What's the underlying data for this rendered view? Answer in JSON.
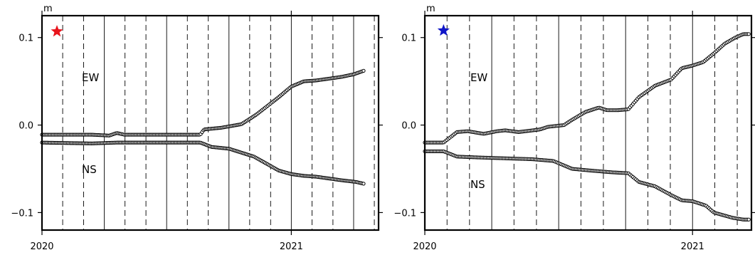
{
  "chart_data": [
    {
      "type": "scatter",
      "panel": "left",
      "unit": "m",
      "xlim": [
        2020.0,
        2021.35
      ],
      "ylim": [
        -0.12,
        0.125
      ],
      "x_ticks": [
        {
          "value": 2020.0,
          "label": "2020"
        },
        {
          "value": 2021.0,
          "label": "2021"
        }
      ],
      "y_ticks": [
        {
          "value": 0.1,
          "label": "0.1"
        },
        {
          "value": 0.0,
          "label": "0.0"
        },
        {
          "value": -0.1,
          "label": "−0.1"
        }
      ],
      "marker": {
        "symbol": "star",
        "color": "#e8141c",
        "x": 2020.06,
        "y": 0.107
      },
      "solid_lines": [
        2020.25,
        2020.5,
        2020.75,
        2021.0,
        2021.25
      ],
      "dashed_lines": [
        2020.083,
        2020.167,
        2020.333,
        2020.417,
        2020.583,
        2020.667,
        2020.833,
        2020.917,
        2021.083,
        2021.167,
        2021.333
      ],
      "series": [
        {
          "name": "EW",
          "label_at": {
            "x": 2020.16,
            "y": 0.05
          },
          "knots": [
            [
              2020.0,
              -0.011
            ],
            [
              2020.2,
              -0.011
            ],
            [
              2020.27,
              -0.012
            ],
            [
              2020.3,
              -0.009
            ],
            [
              2020.33,
              -0.011
            ],
            [
              2020.6,
              -0.011
            ],
            [
              2020.635,
              -0.011
            ],
            [
              2020.65,
              -0.005
            ],
            [
              2020.72,
              -0.003
            ],
            [
              2020.8,
              0.001
            ],
            [
              2020.86,
              0.012
            ],
            [
              2020.95,
              0.032
            ],
            [
              2021.0,
              0.044
            ],
            [
              2021.05,
              0.05
            ],
            [
              2021.1,
              0.051
            ],
            [
              2021.2,
              0.055
            ],
            [
              2021.25,
              0.058
            ],
            [
              2021.27,
              0.06
            ],
            [
              2021.29,
              0.062
            ]
          ],
          "values_note": "y values in m"
        },
        {
          "name": "NS",
          "label_at": {
            "x": 2020.16,
            "y": -0.055
          },
          "knots": [
            [
              2020.0,
              -0.02
            ],
            [
              2020.2,
              -0.021
            ],
            [
              2020.3,
              -0.02
            ],
            [
              2020.6,
              -0.02
            ],
            [
              2020.635,
              -0.02
            ],
            [
              2020.68,
              -0.025
            ],
            [
              2020.75,
              -0.027
            ],
            [
              2020.85,
              -0.036
            ],
            [
              2020.95,
              -0.052
            ],
            [
              2021.0,
              -0.056
            ],
            [
              2021.05,
              -0.058
            ],
            [
              2021.1,
              -0.059
            ],
            [
              2021.2,
              -0.063
            ],
            [
              2021.26,
              -0.065
            ],
            [
              2021.29,
              -0.067
            ]
          ]
        }
      ]
    },
    {
      "type": "scatter",
      "panel": "right",
      "unit": "m",
      "xlim": [
        2020.0,
        2021.22
      ],
      "ylim": [
        -0.12,
        0.125
      ],
      "x_ticks": [
        {
          "value": 2020.0,
          "label": "2020"
        },
        {
          "value": 2021.0,
          "label": "2021"
        }
      ],
      "y_ticks": [
        {
          "value": 0.1,
          "label": "0.1"
        },
        {
          "value": 0.0,
          "label": "0.0"
        },
        {
          "value": -0.1,
          "label": "−0.1"
        }
      ],
      "marker": {
        "symbol": "star",
        "color": "#1016c8",
        "x": 2020.07,
        "y": 0.108
      },
      "solid_lines": [
        2020.25,
        2020.5,
        2020.75,
        2021.0
      ],
      "dashed_lines": [
        2020.083,
        2020.167,
        2020.333,
        2020.417,
        2020.583,
        2020.667,
        2020.833,
        2020.917,
        2021.083,
        2021.167
      ],
      "series": [
        {
          "name": "EW",
          "label_at": {
            "x": 2020.17,
            "y": 0.05
          },
          "knots": [
            [
              2020.0,
              -0.02
            ],
            [
              2020.07,
              -0.02
            ],
            [
              2020.12,
              -0.008
            ],
            [
              2020.16,
              -0.007
            ],
            [
              2020.22,
              -0.01
            ],
            [
              2020.27,
              -0.007
            ],
            [
              2020.3,
              -0.006
            ],
            [
              2020.35,
              -0.008
            ],
            [
              2020.43,
              -0.005
            ],
            [
              2020.46,
              -0.002
            ],
            [
              2020.52,
              0.0
            ],
            [
              2020.55,
              0.006
            ],
            [
              2020.6,
              0.015
            ],
            [
              2020.65,
              0.02
            ],
            [
              2020.68,
              0.017
            ],
            [
              2020.72,
              0.017
            ],
            [
              2020.76,
              0.018
            ],
            [
              2020.8,
              0.032
            ],
            [
              2020.86,
              0.045
            ],
            [
              2020.92,
              0.052
            ],
            [
              2020.96,
              0.065
            ],
            [
              2021.0,
              0.068
            ],
            [
              2021.04,
              0.072
            ],
            [
              2021.08,
              0.082
            ],
            [
              2021.12,
              0.093
            ],
            [
              2021.16,
              0.1
            ],
            [
              2021.19,
              0.104
            ],
            [
              2021.21,
              0.104
            ]
          ]
        },
        {
          "name": "NS",
          "label_at": {
            "x": 2020.17,
            "y": -0.072
          },
          "knots": [
            [
              2020.0,
              -0.03
            ],
            [
              2020.07,
              -0.03
            ],
            [
              2020.12,
              -0.036
            ],
            [
              2020.2,
              -0.037
            ],
            [
              2020.3,
              -0.038
            ],
            [
              2020.4,
              -0.039
            ],
            [
              2020.48,
              -0.041
            ],
            [
              2020.55,
              -0.05
            ],
            [
              2020.62,
              -0.052
            ],
            [
              2020.7,
              -0.054
            ],
            [
              2020.76,
              -0.055
            ],
            [
              2020.8,
              -0.065
            ],
            [
              2020.86,
              -0.07
            ],
            [
              2020.92,
              -0.08
            ],
            [
              2020.96,
              -0.086
            ],
            [
              2021.0,
              -0.087
            ],
            [
              2021.05,
              -0.092
            ],
            [
              2021.08,
              -0.1
            ],
            [
              2021.15,
              -0.106
            ],
            [
              2021.19,
              -0.108
            ],
            [
              2021.21,
              -0.108
            ]
          ]
        }
      ]
    }
  ]
}
